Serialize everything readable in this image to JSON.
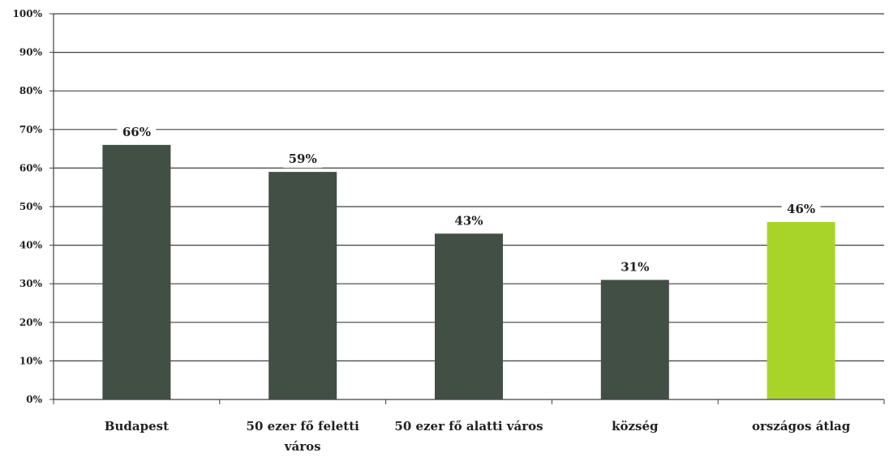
{
  "chart_data": {
    "type": "bar",
    "categories": [
      [
        "Budapest"
      ],
      [
        "50 ezer fő feletti",
        "város"
      ],
      [
        "50 ezer fő alatti város"
      ],
      [
        "község"
      ],
      [
        "országos átlag"
      ]
    ],
    "values": [
      66,
      59,
      43,
      31,
      46
    ],
    "data_labels": [
      "66%",
      "59%",
      "43%",
      "31%",
      "46%"
    ],
    "bar_colors": [
      "#424f45",
      "#424f45",
      "#424f45",
      "#424f45",
      "#a8d42a"
    ],
    "ylim": [
      0,
      100
    ],
    "y_ticks": [
      "0%",
      "10%",
      "20%",
      "30%",
      "40%",
      "50%",
      "60%",
      "70%",
      "80%",
      "90%",
      "100%"
    ],
    "grid": true,
    "legend": "none"
  }
}
